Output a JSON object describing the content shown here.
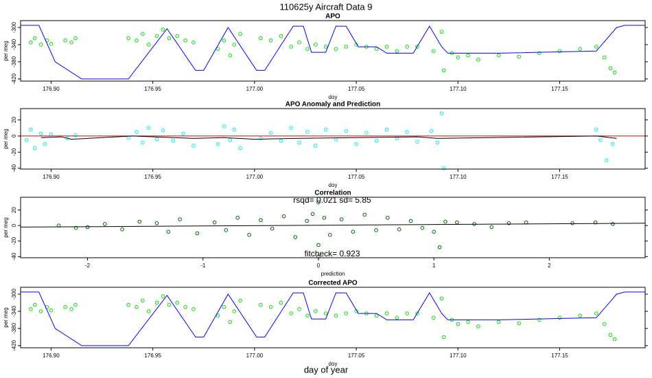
{
  "title": "110625y    Aircraft Data 9",
  "xlabel": "day of year",
  "chart_data": [
    {
      "type": "scatter",
      "title": "APO",
      "xlabel": "doy",
      "ylabel": "per meg",
      "xlim": [
        176.885,
        177.192
      ],
      "ylim": [
        -425,
        -284
      ],
      "xticks": [
        {
          "value": 176.9,
          "label": "176.90"
        },
        176.95,
        {
          "value": 177.0,
          "label": "177.00"
        },
        177.05,
        {
          "value": 177.1,
          "label": "177.10"
        },
        177.15
      ],
      "yticks": [
        -420,
        -380,
        -340,
        -300
      ],
      "series": [
        {
          "style": "points",
          "color": "#00e000",
          "x": [
            176.89,
            176.892,
            176.895,
            176.898,
            176.9,
            176.907,
            176.91,
            176.912,
            176.938,
            176.942,
            176.945,
            176.948,
            176.952,
            176.955,
            176.958,
            176.962,
            176.966,
            176.97,
            176.982,
            176.985,
            176.988,
            176.99,
            176.993,
            177.003,
            177.008,
            177.013,
            177.018,
            177.022,
            177.026,
            177.03,
            177.035,
            177.04,
            177.045,
            177.05,
            177.055,
            177.06,
            177.065,
            177.07,
            177.075,
            177.08,
            177.088,
            177.092,
            177.093,
            177.097,
            177.1,
            177.105,
            177.11,
            177.12,
            177.13,
            177.14,
            177.15,
            177.16,
            177.168,
            177.172,
            177.175,
            177.177
          ],
          "values": [
            -335,
            -325,
            -340,
            -330,
            -338,
            -330,
            -335,
            -325,
            -325,
            -330,
            -315,
            -340,
            -320,
            -305,
            -325,
            -320,
            -330,
            -335,
            -350,
            -330,
            -365,
            -340,
            -315,
            -325,
            -330,
            -320,
            -345,
            -335,
            -350,
            -340,
            -345,
            -350,
            -345,
            -340,
            -345,
            -350,
            -345,
            -355,
            -345,
            -345,
            -355,
            -310,
            -400,
            -360,
            -370,
            -365,
            -375,
            -365,
            -368,
            -360,
            -355,
            -350,
            -345,
            -370,
            -395,
            -405
          ]
        },
        {
          "style": "line",
          "color": "#0000ff",
          "x": [
            176.885,
            176.894,
            176.902,
            176.915,
            176.938,
            176.957,
            176.971,
            176.975,
            176.987,
            177.001,
            177.005,
            177.019,
            177.024,
            177.028,
            177.035,
            177.04,
            177.045,
            177.051,
            177.06,
            177.065,
            177.07,
            177.078,
            177.086,
            177.092,
            177.095,
            177.12,
            177.168,
            177.178,
            177.182,
            177.192
          ],
          "values": [
            -295,
            -295,
            -380,
            -420,
            -420,
            -303,
            -400,
            -400,
            -300,
            -400,
            -400,
            -297,
            -297,
            -358,
            -358,
            -297,
            -297,
            -345,
            -345,
            -360,
            -360,
            -360,
            -297,
            -345,
            -360,
            -360,
            -355,
            -300,
            -295,
            -295
          ]
        }
      ]
    },
    {
      "type": "scatter",
      "title": "APO Anomaly and Prediction",
      "xlabel": "doy",
      "ylabel": "per meg",
      "xlim": [
        176.885,
        177.192
      ],
      "ylim": [
        -41,
        34
      ],
      "xticks": [
        {
          "value": 176.9,
          "label": "176.90"
        },
        176.95,
        {
          "value": 177.0,
          "label": "177.00"
        },
        177.05,
        {
          "value": 177.1,
          "label": "177.10"
        },
        177.15
      ],
      "yticks": [
        -40,
        -20,
        0,
        20
      ],
      "series": [
        {
          "style": "points",
          "color": "#00f0f0",
          "x": [
            176.888,
            176.89,
            176.892,
            176.895,
            176.897,
            176.9,
            176.908,
            176.912,
            176.938,
            176.942,
            176.945,
            176.948,
            176.952,
            176.955,
            176.96,
            176.965,
            176.97,
            176.982,
            176.985,
            176.988,
            176.99,
            176.993,
            177.003,
            177.008,
            177.013,
            177.018,
            177.022,
            177.026,
            177.03,
            177.035,
            177.04,
            177.045,
            177.05,
            177.055,
            177.06,
            177.065,
            177.07,
            177.075,
            177.08,
            177.087,
            177.09,
            177.092,
            177.093,
            177.168,
            177.17,
            177.173,
            177.176
          ],
          "values": [
            -5,
            8,
            -15,
            3,
            -10,
            2,
            -3,
            1,
            -2,
            5,
            -8,
            10,
            -4,
            7,
            -6,
            3,
            -12,
            -10,
            12,
            -5,
            8,
            -15,
            -3,
            4,
            -6,
            10,
            -8,
            5,
            -12,
            8,
            -4,
            6,
            -10,
            4,
            -6,
            8,
            -3,
            5,
            -7,
            6,
            -8,
            28,
            -40,
            8,
            -5,
            -30,
            -10
          ]
        },
        {
          "style": "line",
          "color": "#dd0000",
          "x": [
            176.885,
            177.192
          ],
          "values": [
            0,
            0
          ]
        },
        {
          "style": "line",
          "color": "#000000",
          "x": [
            176.895,
            176.905,
            176.91,
            176.94,
            176.97,
            176.985,
            177.0,
            177.02,
            177.05,
            177.08,
            177.09,
            177.168,
            177.178
          ],
          "values": [
            -2,
            -1,
            -4,
            0,
            -3,
            -2,
            -4,
            -3,
            -2,
            -1,
            -3,
            0,
            -3
          ]
        }
      ]
    },
    {
      "type": "scatter",
      "title": "Correlation",
      "xlabel": "prediction",
      "ylabel": "per meg",
      "annotations": [
        "rsqd= 0.021 sd= 5.85",
        "fitcheck= 0.923"
      ],
      "xlim": [
        -2.58,
        2.83
      ],
      "ylim": [
        -41.5,
        36.5
      ],
      "xticks": [
        -2,
        -1,
        0,
        1,
        2
      ],
      "yticks": [
        -40,
        -20,
        0,
        20
      ],
      "series": [
        {
          "style": "points",
          "color": "#006400",
          "x": [
            -2.25,
            -2.1,
            -2.0,
            -1.85,
            -1.7,
            -1.55,
            -1.4,
            -1.3,
            -1.2,
            -1.05,
            -0.9,
            -0.8,
            -0.7,
            -0.6,
            -0.5,
            -0.4,
            -0.3,
            -0.2,
            -0.1,
            -0.05,
            0,
            0,
            0,
            0.05,
            0.1,
            0.2,
            0.3,
            0.4,
            0.5,
            0.6,
            0.7,
            0.8,
            0.9,
            1.0,
            1.05,
            1.1,
            1.2,
            1.35,
            1.5,
            1.65,
            1.8,
            2.2,
            2.4,
            2.55
          ],
          "values": [
            0,
            -3,
            -2,
            2,
            -5,
            5,
            3,
            -8,
            8,
            -10,
            4,
            -6,
            10,
            -12,
            7,
            -4,
            12,
            -15,
            6,
            15,
            -25,
            30,
            -40,
            10,
            -12,
            8,
            -8,
            14,
            -6,
            10,
            -5,
            6,
            -3,
            -8,
            -28,
            5,
            4,
            2,
            -2,
            3,
            4,
            3,
            4,
            2
          ]
        },
        {
          "style": "line",
          "color": "#000000",
          "x": [
            -2.58,
            2.83
          ],
          "values": [
            -2,
            3
          ]
        }
      ]
    },
    {
      "type": "scatter",
      "title": "Corrected APO",
      "xlabel": "doy",
      "ylabel": "per meg",
      "xlim": [
        176.885,
        177.192
      ],
      "ylim": [
        -425,
        -284
      ],
      "xticks": [
        {
          "value": 176.9,
          "label": "176.90"
        },
        176.95,
        {
          "value": 177.0,
          "label": "177.00"
        },
        177.05,
        {
          "value": 177.1,
          "label": "177.10"
        },
        177.15
      ],
      "yticks": [
        -420,
        -380,
        -340,
        -300
      ],
      "series": [
        {
          "style": "points",
          "color": "#00e000",
          "x": [
            176.89,
            176.892,
            176.895,
            176.898,
            176.9,
            176.907,
            176.91,
            176.912,
            176.938,
            176.942,
            176.945,
            176.948,
            176.952,
            176.955,
            176.958,
            176.962,
            176.966,
            176.97,
            176.982,
            176.985,
            176.988,
            176.99,
            176.993,
            177.003,
            177.008,
            177.013,
            177.018,
            177.022,
            177.026,
            177.03,
            177.035,
            177.04,
            177.045,
            177.05,
            177.055,
            177.06,
            177.065,
            177.07,
            177.075,
            177.08,
            177.088,
            177.092,
            177.093,
            177.097,
            177.1,
            177.105,
            177.11,
            177.12,
            177.13,
            177.14,
            177.15,
            177.16,
            177.168,
            177.172,
            177.175,
            177.177
          ],
          "values": [
            -335,
            -325,
            -340,
            -330,
            -338,
            -330,
            -335,
            -325,
            -325,
            -330,
            -315,
            -340,
            -320,
            -305,
            -325,
            -320,
            -330,
            -335,
            -350,
            -330,
            -365,
            -340,
            -315,
            -325,
            -330,
            -320,
            -345,
            -335,
            -350,
            -340,
            -345,
            -350,
            -345,
            -340,
            -345,
            -350,
            -345,
            -355,
            -345,
            -345,
            -355,
            -310,
            -400,
            -360,
            -370,
            -365,
            -375,
            -365,
            -368,
            -360,
            -355,
            -350,
            -345,
            -370,
            -395,
            -405
          ]
        },
        {
          "style": "line",
          "color": "#0000ff",
          "x": [
            176.885,
            176.894,
            176.902,
            176.915,
            176.938,
            176.957,
            176.971,
            176.975,
            176.987,
            177.001,
            177.005,
            177.019,
            177.024,
            177.028,
            177.035,
            177.04,
            177.045,
            177.051,
            177.06,
            177.065,
            177.07,
            177.078,
            177.086,
            177.092,
            177.095,
            177.12,
            177.168,
            177.178,
            177.182,
            177.192
          ],
          "values": [
            -295,
            -295,
            -380,
            -420,
            -420,
            -303,
            -400,
            -400,
            -300,
            -400,
            -400,
            -297,
            -297,
            -358,
            -358,
            -297,
            -297,
            -345,
            -345,
            -360,
            -360,
            -360,
            -297,
            -345,
            -360,
            -360,
            -355,
            -300,
            -295,
            -295
          ]
        }
      ]
    }
  ]
}
